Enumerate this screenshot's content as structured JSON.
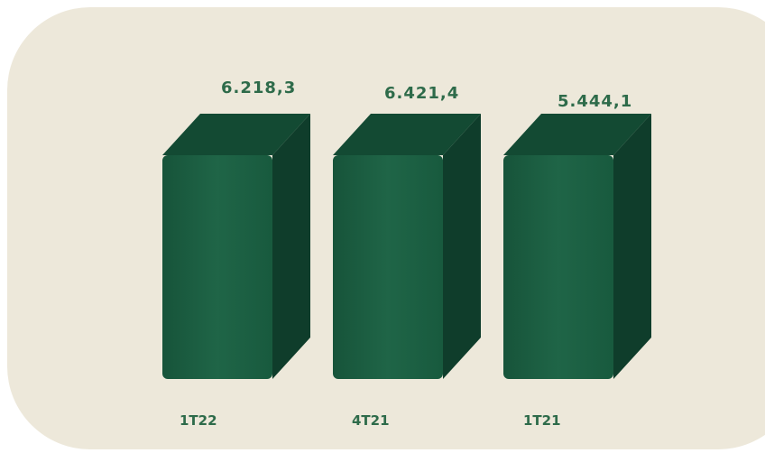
{
  "chart_data": {
    "type": "bar",
    "categories": [
      "1T22",
      "4T21",
      "1T21"
    ],
    "values": [
      6218.3,
      6421.4,
      5444.1
    ],
    "value_labels": [
      "6.218,3",
      "6.421,4",
      "5.444,1"
    ],
    "title": "",
    "xlabel": "",
    "ylabel": "",
    "style": "3d-column",
    "colors": {
      "front": "#1b5e41",
      "side": "#0f3d2b",
      "top": "#134a33",
      "label": "#2e6b4a",
      "background": "#ede8da"
    }
  }
}
